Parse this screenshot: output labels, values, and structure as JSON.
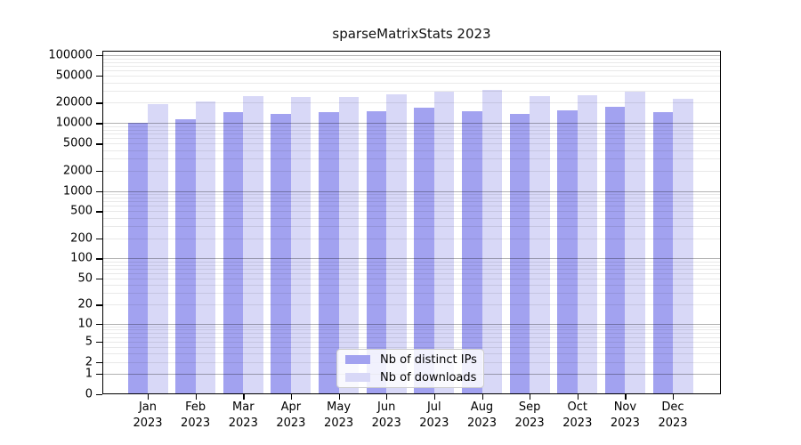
{
  "title": "sparseMatrixStats 2023",
  "colors": {
    "background": "#ffffff",
    "axis": "#000000",
    "grid_major": "#ababab",
    "grid_minor": "#e9e9e9",
    "bar_distinct_ips": "#a2a2f0",
    "bar_downloads": "#d8d8f7",
    "legend_border": "#cccccc",
    "text": "#000000"
  },
  "legend": {
    "position": "lower center",
    "items": [
      "Nb of distinct IPs",
      "Nb of downloads"
    ]
  },
  "chart_data": {
    "type": "bar",
    "title": "sparseMatrixStats 2023",
    "categories": [
      "Jan 2023",
      "Feb 2023",
      "Mar 2023",
      "Apr 2023",
      "May 2023",
      "Jun 2023",
      "Jul 2023",
      "Aug 2023",
      "Sep 2023",
      "Oct 2023",
      "Nov 2023",
      "Dec 2023"
    ],
    "months": [
      "Jan",
      "Feb",
      "Mar",
      "Apr",
      "May",
      "Jun",
      "Jul",
      "Aug",
      "Sep",
      "Oct",
      "Nov",
      "Dec"
    ],
    "year": "2023",
    "series": [
      {
        "name": "Nb of distinct IPs",
        "color": "#a2a2f0",
        "values": [
          10200,
          11500,
          14700,
          13800,
          14500,
          14800,
          17100,
          14800,
          13800,
          15400,
          17600,
          14400
        ]
      },
      {
        "name": "Nb of downloads",
        "color": "#d8d8f7",
        "values": [
          19100,
          20700,
          25300,
          24100,
          24300,
          26600,
          29400,
          31200,
          24800,
          25800,
          29400,
          22900
        ]
      }
    ],
    "xlabel": "",
    "ylabel": "",
    "y_scale": "log10(value+1)",
    "y_ticks": [
      0,
      1,
      2,
      5,
      10,
      20,
      50,
      100,
      200,
      500,
      1000,
      2000,
      5000,
      10000,
      20000,
      50000,
      100000
    ],
    "ylim": [
      0,
      117000
    ],
    "grid": "minor gridlines at 2-9 per decade (light), major gridlines at powers of 10 (dark), drawn over bars",
    "legend_position": "lower center"
  }
}
